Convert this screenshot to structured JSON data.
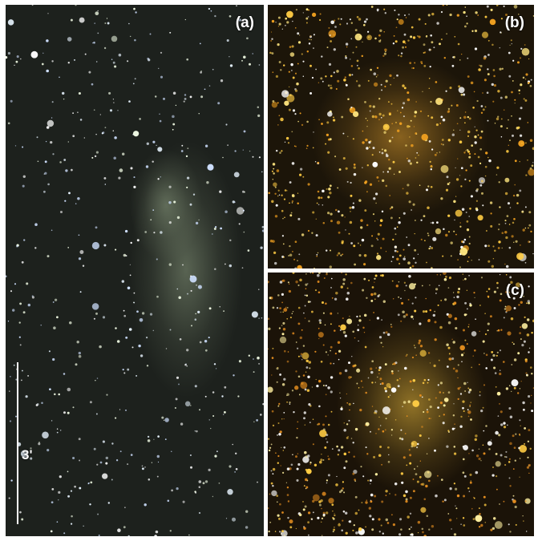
{
  "panels": [
    {
      "id": "a",
      "label": "(a)",
      "bg": "#1d211d",
      "glow": "#8a9a7e",
      "star_colors": [
        "#ffffff",
        "#e8f4ff",
        "#cfe0ff",
        "#f5ffe8"
      ]
    },
    {
      "id": "b",
      "label": "(b)",
      "bg": "#1c1509",
      "glow": "#e0a030",
      "star_colors": [
        "#ffcc44",
        "#f0a020",
        "#ffe680",
        "#ffffff"
      ]
    },
    {
      "id": "c",
      "label": "(c)",
      "bg": "#1b1308",
      "glow": "#f0c040",
      "star_colors": [
        "#ffcc44",
        "#e89020",
        "#fff0a0",
        "#ffffff"
      ]
    }
  ],
  "scale_bar": {
    "label": "3'",
    "color": "#ffffff"
  }
}
